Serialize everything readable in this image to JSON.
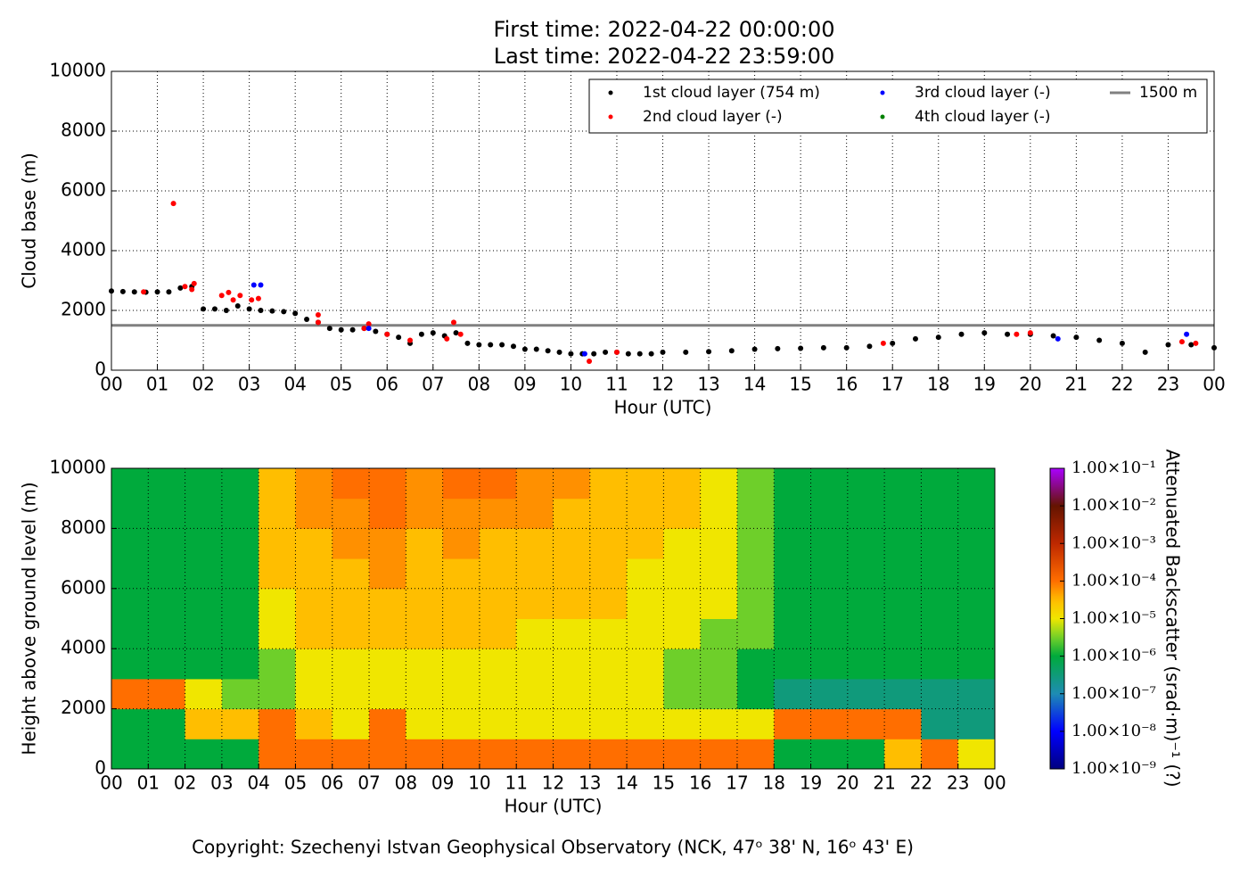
{
  "chart_data": [
    {
      "type": "scatter",
      "title": "First time: 2022-04-22 00:00:00",
      "subtitle": "Last time: 2022-04-22 23:59:00",
      "x_label": "Hour (UTC)",
      "y_label": "Cloud base (m)",
      "xlim": [
        0,
        24
      ],
      "ylim": [
        0,
        10000
      ],
      "grid": true,
      "xticks": [
        {
          "value": 0,
          "label": "00"
        },
        {
          "value": 1,
          "label": "01"
        },
        {
          "value": 2,
          "label": "02"
        },
        {
          "value": 3,
          "label": "03"
        },
        {
          "value": 4,
          "label": "04"
        },
        {
          "value": 5,
          "label": "05"
        },
        {
          "value": 6,
          "label": "06"
        },
        {
          "value": 7,
          "label": "07"
        },
        {
          "value": 8,
          "label": "08"
        },
        {
          "value": 9,
          "label": "09"
        },
        {
          "value": 10,
          "label": "10"
        },
        {
          "value": 11,
          "label": "11"
        },
        {
          "value": 12,
          "label": "12"
        },
        {
          "value": 13,
          "label": "13"
        },
        {
          "value": 14,
          "label": "14"
        },
        {
          "value": 15,
          "label": "15"
        },
        {
          "value": 16,
          "label": "16"
        },
        {
          "value": 17,
          "label": "17"
        },
        {
          "value": 18,
          "label": "18"
        },
        {
          "value": 19,
          "label": "19"
        },
        {
          "value": 20,
          "label": "20"
        },
        {
          "value": 21,
          "label": "21"
        },
        {
          "value": 22,
          "label": "22"
        },
        {
          "value": 23,
          "label": "23"
        },
        {
          "value": 24,
          "label": "00"
        }
      ],
      "yticks": [
        0,
        2000,
        4000,
        6000,
        8000,
        10000
      ],
      "series": [
        {
          "name": "1st cloud layer (754 m)",
          "color": "#000000",
          "x": [
            0,
            0.25,
            0.5,
            0.75,
            1,
            1.25,
            1.5,
            1.75,
            2,
            2.25,
            2.5,
            2.75,
            3,
            3.25,
            3.5,
            3.75,
            4,
            4.25,
            4.5,
            4.75,
            5,
            5.25,
            5.5,
            5.75,
            6,
            6.25,
            6.5,
            6.75,
            7,
            7.25,
            7.5,
            7.75,
            8,
            8.25,
            8.5,
            8.75,
            9,
            9.25,
            9.5,
            9.75,
            10,
            10.25,
            10.5,
            10.75,
            11,
            11.25,
            11.5,
            11.75,
            12,
            12.5,
            13,
            13.5,
            14,
            14.5,
            15,
            15.5,
            16,
            16.5,
            17,
            17.5,
            18,
            18.5,
            19,
            19.5,
            20,
            20.5,
            21,
            21.5,
            22,
            22.5,
            23,
            23.5,
            24
          ],
          "values": [
            2650,
            2630,
            2620,
            2610,
            2620,
            2620,
            2750,
            2800,
            2050,
            2050,
            2000,
            2150,
            2050,
            2000,
            1980,
            1960,
            1900,
            1700,
            1600,
            1400,
            1350,
            1350,
            1400,
            1300,
            1200,
            1100,
            900,
            1200,
            1250,
            1150,
            1250,
            900,
            850,
            850,
            850,
            800,
            700,
            700,
            650,
            600,
            550,
            550,
            550,
            600,
            600,
            550,
            550,
            550,
            600,
            600,
            620,
            650,
            700,
            720,
            730,
            750,
            750,
            800,
            900,
            1050,
            1100,
            1200,
            1250,
            1200,
            1200,
            1150,
            1100,
            1000,
            900,
            600,
            850,
            850,
            750
          ]
        },
        {
          "name": "2nd cloud layer (-)",
          "color": "#ff0000",
          "x": [
            0.7,
            1.35,
            1.6,
            1.75,
            1.8,
            2.4,
            2.55,
            2.65,
            2.8,
            3.05,
            3.2,
            4.5,
            4.5,
            5.5,
            5.6,
            6.0,
            6.5,
            7.3,
            7.45,
            7.6,
            10.4,
            11.0,
            16.8,
            19.7,
            20.0,
            23.3,
            23.6
          ],
          "values": [
            2620,
            5580,
            2800,
            2700,
            2900,
            2500,
            2600,
            2350,
            2500,
            2350,
            2400,
            1850,
            1600,
            1400,
            1550,
            1200,
            1000,
            1050,
            1600,
            1200,
            300,
            600,
            900,
            1200,
            1250,
            950,
            900
          ]
        },
        {
          "name": "3rd cloud layer (-)",
          "color": "#0000ff",
          "x": [
            3.1,
            3.25,
            5.6,
            10.3,
            20.6,
            23.4
          ],
          "values": [
            2850,
            2850,
            1400,
            550,
            1050,
            1200
          ]
        },
        {
          "name": "4th cloud layer (-)",
          "color": "#008000",
          "x": [],
          "values": []
        }
      ],
      "hlines": [
        {
          "name": "1500 m",
          "y": 1500,
          "color": "#808080"
        }
      ]
    },
    {
      "type": "heatmap",
      "x_label": "Hour (UTC)",
      "y_label": "Height above ground level (m)",
      "xlim": [
        0,
        24
      ],
      "ylim": [
        0,
        10000
      ],
      "grid": true,
      "xticks": [
        {
          "value": 0,
          "label": "00"
        },
        {
          "value": 1,
          "label": "01"
        },
        {
          "value": 2,
          "label": "02"
        },
        {
          "value": 3,
          "label": "03"
        },
        {
          "value": 4,
          "label": "04"
        },
        {
          "value": 5,
          "label": "05"
        },
        {
          "value": 6,
          "label": "06"
        },
        {
          "value": 7,
          "label": "07"
        },
        {
          "value": 8,
          "label": "08"
        },
        {
          "value": 9,
          "label": "09"
        },
        {
          "value": 10,
          "label": "10"
        },
        {
          "value": 11,
          "label": "11"
        },
        {
          "value": 12,
          "label": "12"
        },
        {
          "value": 13,
          "label": "13"
        },
        {
          "value": 14,
          "label": "14"
        },
        {
          "value": 15,
          "label": "15"
        },
        {
          "value": 16,
          "label": "16"
        },
        {
          "value": 17,
          "label": "17"
        },
        {
          "value": 18,
          "label": "18"
        },
        {
          "value": 19,
          "label": "19"
        },
        {
          "value": 20,
          "label": "20"
        },
        {
          "value": 21,
          "label": "21"
        },
        {
          "value": 22,
          "label": "22"
        },
        {
          "value": 23,
          "label": "23"
        },
        {
          "value": 24,
          "label": "00"
        }
      ],
      "yticks": [
        0,
        2000,
        4000,
        6000,
        8000,
        10000
      ],
      "z": [
        [
          1e-06,
          1e-06,
          1e-06,
          1e-06,
          0.0001,
          0.0001,
          0.0001,
          0.0001,
          0.0001,
          0.0001,
          0.0001,
          0.0001,
          0.0001,
          0.0001,
          0.0001,
          0.0001,
          0.0001,
          0.0001,
          1e-06,
          1e-06,
          1e-06,
          3e-05,
          0.0001,
          1e-05
        ],
        [
          1e-06,
          1e-06,
          3e-05,
          3e-05,
          0.0001,
          3e-05,
          1e-05,
          0.0001,
          1e-05,
          1e-05,
          1e-05,
          1e-05,
          1e-05,
          1e-05,
          1e-05,
          1e-05,
          1e-05,
          1e-05,
          0.0001,
          0.0001,
          0.0001,
          0.0001,
          3e-07,
          3e-07
        ],
        [
          0.0001,
          0.0001,
          1e-05,
          3e-06,
          3e-06,
          1e-05,
          1e-05,
          1e-05,
          1e-05,
          1e-05,
          1e-05,
          1e-05,
          1e-05,
          1e-05,
          1e-05,
          3e-06,
          3e-06,
          1e-06,
          3e-07,
          3e-07,
          3e-07,
          3e-07,
          3e-07,
          3e-07
        ],
        [
          1e-06,
          1e-06,
          1e-06,
          1e-06,
          3e-06,
          1e-05,
          1e-05,
          1e-05,
          1e-05,
          1e-05,
          1e-05,
          1e-05,
          1e-05,
          1e-05,
          1e-05,
          3e-06,
          3e-06,
          1e-06,
          1e-06,
          1e-06,
          1e-06,
          1e-06,
          1e-06,
          1e-06
        ],
        [
          1e-06,
          1e-06,
          1e-06,
          1e-06,
          1e-05,
          3e-05,
          3e-05,
          3e-05,
          3e-05,
          3e-05,
          3e-05,
          1e-05,
          1e-05,
          1e-05,
          1e-05,
          1e-05,
          3e-06,
          3e-06,
          1e-06,
          1e-06,
          1e-06,
          1e-06,
          1e-06,
          1e-06
        ],
        [
          1e-06,
          1e-06,
          1e-06,
          1e-06,
          1e-05,
          3e-05,
          3e-05,
          3e-05,
          3e-05,
          3e-05,
          3e-05,
          3e-05,
          3e-05,
          3e-05,
          1e-05,
          1e-05,
          1e-05,
          3e-06,
          1e-06,
          1e-06,
          1e-06,
          1e-06,
          1e-06,
          1e-06
        ],
        [
          1e-06,
          1e-06,
          1e-06,
          1e-06,
          3e-05,
          3e-05,
          3e-05,
          6e-05,
          3e-05,
          3e-05,
          3e-05,
          3e-05,
          3e-05,
          3e-05,
          1e-05,
          1e-05,
          1e-05,
          3e-06,
          1e-06,
          1e-06,
          1e-06,
          1e-06,
          1e-06,
          1e-06
        ],
        [
          1e-06,
          1e-06,
          1e-06,
          1e-06,
          3e-05,
          3e-05,
          6e-05,
          6e-05,
          3e-05,
          6e-05,
          3e-05,
          3e-05,
          3e-05,
          3e-05,
          3e-05,
          1e-05,
          1e-05,
          3e-06,
          1e-06,
          1e-06,
          1e-06,
          1e-06,
          1e-06,
          1e-06
        ],
        [
          1e-06,
          1e-06,
          1e-06,
          1e-06,
          3e-05,
          6e-05,
          6e-05,
          0.0001,
          6e-05,
          6e-05,
          6e-05,
          6e-05,
          3e-05,
          3e-05,
          3e-05,
          3e-05,
          1e-05,
          3e-06,
          1e-06,
          1e-06,
          1e-06,
          1e-06,
          1e-06,
          1e-06
        ],
        [
          1e-06,
          1e-06,
          1e-06,
          1e-06,
          3e-05,
          6e-05,
          0.0001,
          0.0001,
          6e-05,
          0.0001,
          0.0001,
          6e-05,
          6e-05,
          3e-05,
          3e-05,
          3e-05,
          1e-05,
          3e-06,
          1e-06,
          1e-06,
          1e-06,
          1e-06,
          1e-06,
          1e-06
        ]
      ],
      "colorbar": {
        "label": "Attenuated Backscatter (srad·m)⁻¹ (?)",
        "log_scale": true,
        "lim": [
          1e-09,
          0.1
        ],
        "ticks": [
          {
            "value": 1e-09,
            "label": "1.00×10⁻⁹"
          },
          {
            "value": 1e-08,
            "label": "1.00×10⁻⁸"
          },
          {
            "value": 1e-07,
            "label": "1.00×10⁻⁷"
          },
          {
            "value": 1e-06,
            "label": "1.00×10⁻⁶"
          },
          {
            "value": 1e-05,
            "label": "1.00×10⁻⁵"
          },
          {
            "value": 0.0001,
            "label": "1.00×10⁻⁴"
          },
          {
            "value": 0.001,
            "label": "1.00×10⁻³"
          },
          {
            "value": 0.01,
            "label": "1.00×10⁻²"
          },
          {
            "value": 0.1,
            "label": "1.00×10⁻¹"
          }
        ]
      }
    }
  ],
  "footer": "Copyright: Szechenyi Istvan Geophysical Observatory (NCK, 47ᵒ 38' N, 16ᵒ 43' E)"
}
